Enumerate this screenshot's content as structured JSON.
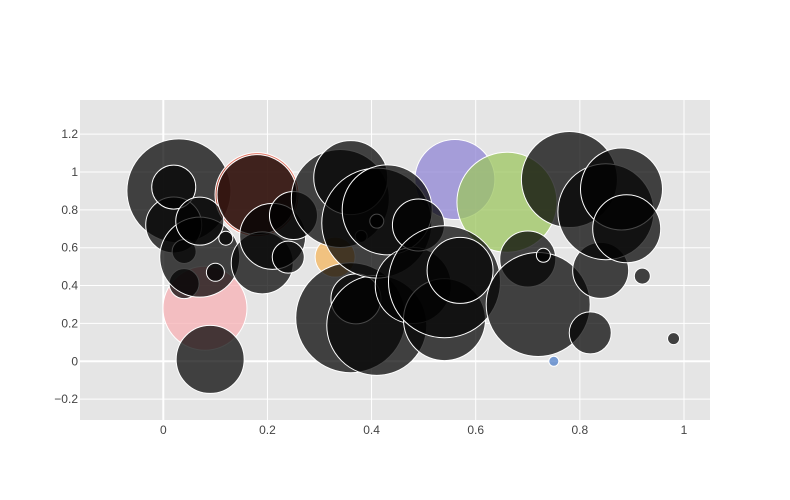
{
  "chart_data": {
    "type": "scatter",
    "title": "",
    "xlabel": "",
    "ylabel": "",
    "xlim": [
      -0.16,
      1.05
    ],
    "ylim": [
      -0.31,
      1.38
    ],
    "grid": true,
    "legend": "none",
    "x_ticks": [
      0,
      0.2,
      0.4,
      0.6,
      0.8,
      1
    ],
    "x_tick_labels": [
      "0",
      "0.2",
      "0.4",
      "0.6",
      "0.8",
      "1"
    ],
    "y_ticks": [
      -0.2,
      0,
      0.2,
      0.4,
      0.6,
      0.8,
      1,
      1.2
    ],
    "y_tick_labels": [
      "−0.2",
      "0",
      "0.2",
      "0.4",
      "0.6",
      "0.8",
      "1",
      "1.2"
    ],
    "plot_background": "#e5e5e5",
    "point_colors": {
      "dark": "#000000",
      "red": "#e2553f",
      "pink": "#f7b0b4",
      "orange": "#f4b55e",
      "purple": "#8f84d4",
      "green": "#9cc65f",
      "blue": "#4f7fc8"
    },
    "points": [
      {
        "x": 0.03,
        "y": 0.9,
        "size": 52,
        "color": "dark"
      },
      {
        "x": 0.08,
        "y": 0.28,
        "size": 42,
        "color": "pink"
      },
      {
        "x": 0.18,
        "y": 0.88,
        "size": 42,
        "color": "red"
      },
      {
        "x": 0.33,
        "y": 0.55,
        "size": 20,
        "color": "orange"
      },
      {
        "x": 0.56,
        "y": 0.96,
        "size": 40,
        "color": "purple"
      },
      {
        "x": 0.66,
        "y": 0.84,
        "size": 50,
        "color": "green"
      },
      {
        "x": 0.75,
        "y": 0.0,
        "size": 5,
        "color": "blue"
      },
      {
        "x": 0.02,
        "y": 0.72,
        "size": 28,
        "color": "dark"
      },
      {
        "x": 0.02,
        "y": 0.92,
        "size": 22,
        "color": "dark"
      },
      {
        "x": 0.04,
        "y": 0.58,
        "size": 12,
        "color": "dark"
      },
      {
        "x": 0.04,
        "y": 0.41,
        "size": 15,
        "color": "dark"
      },
      {
        "x": 0.07,
        "y": 0.55,
        "size": 40,
        "color": "dark"
      },
      {
        "x": 0.07,
        "y": 0.74,
        "size": 24,
        "color": "dark"
      },
      {
        "x": 0.09,
        "y": 0.01,
        "size": 34,
        "color": "dark"
      },
      {
        "x": 0.1,
        "y": 0.47,
        "size": 9,
        "color": "dark"
      },
      {
        "x": 0.12,
        "y": 0.65,
        "size": 7,
        "color": "dark"
      },
      {
        "x": 0.18,
        "y": 0.88,
        "size": 40,
        "color": "dark"
      },
      {
        "x": 0.19,
        "y": 0.52,
        "size": 31,
        "color": "dark"
      },
      {
        "x": 0.21,
        "y": 0.66,
        "size": 33,
        "color": "dark"
      },
      {
        "x": 0.24,
        "y": 0.55,
        "size": 16,
        "color": "dark"
      },
      {
        "x": 0.25,
        "y": 0.77,
        "size": 24,
        "color": "dark"
      },
      {
        "x": 0.34,
        "y": 0.86,
        "size": 49,
        "color": "dark"
      },
      {
        "x": 0.36,
        "y": 0.97,
        "size": 37,
        "color": "dark"
      },
      {
        "x": 0.36,
        "y": 0.23,
        "size": 55,
        "color": "dark"
      },
      {
        "x": 0.37,
        "y": 0.33,
        "size": 25,
        "color": "dark"
      },
      {
        "x": 0.38,
        "y": 0.66,
        "size": 6,
        "color": "dark"
      },
      {
        "x": 0.41,
        "y": 0.19,
        "size": 50,
        "color": "dark"
      },
      {
        "x": 0.41,
        "y": 0.73,
        "size": 55,
        "color": "dark"
      },
      {
        "x": 0.41,
        "y": 0.74,
        "size": 7,
        "color": "dark"
      },
      {
        "x": 0.43,
        "y": 0.8,
        "size": 45,
        "color": "dark"
      },
      {
        "x": 0.48,
        "y": 0.4,
        "size": 38,
        "color": "dark"
      },
      {
        "x": 0.49,
        "y": 0.72,
        "size": 26,
        "color": "dark"
      },
      {
        "x": 0.54,
        "y": 0.22,
        "size": 41,
        "color": "dark"
      },
      {
        "x": 0.54,
        "y": 0.42,
        "size": 56,
        "color": "dark"
      },
      {
        "x": 0.57,
        "y": 0.48,
        "size": 33,
        "color": "dark"
      },
      {
        "x": 0.7,
        "y": 0.54,
        "size": 28,
        "color": "dark"
      },
      {
        "x": 0.72,
        "y": 0.3,
        "size": 52,
        "color": "dark"
      },
      {
        "x": 0.73,
        "y": 0.56,
        "size": 7,
        "color": "dark"
      },
      {
        "x": 0.78,
        "y": 0.96,
        "size": 48,
        "color": "dark"
      },
      {
        "x": 0.82,
        "y": 0.15,
        "size": 21,
        "color": "dark"
      },
      {
        "x": 0.84,
        "y": 0.48,
        "size": 28,
        "color": "dark"
      },
      {
        "x": 0.85,
        "y": 0.79,
        "size": 48,
        "color": "dark"
      },
      {
        "x": 0.88,
        "y": 0.91,
        "size": 41,
        "color": "dark"
      },
      {
        "x": 0.89,
        "y": 0.7,
        "size": 34,
        "color": "dark"
      },
      {
        "x": 0.92,
        "y": 0.45,
        "size": 8,
        "color": "dark"
      },
      {
        "x": 0.98,
        "y": 0.12,
        "size": 6,
        "color": "dark"
      }
    ]
  }
}
